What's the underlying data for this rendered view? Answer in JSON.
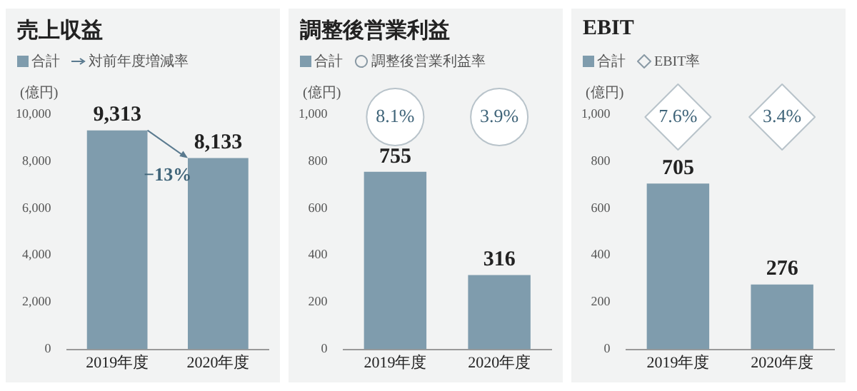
{
  "chart_data": [
    {
      "type": "bar",
      "title": "売上収益",
      "ylabel": "(億円)",
      "categories": [
        "2019年度",
        "2020年度"
      ],
      "series": [
        {
          "name": "合計",
          "color": "#7f9cad",
          "values": [
            9313,
            8133
          ],
          "value_labels": [
            "9,313",
            "8,133"
          ]
        }
      ],
      "ylim": [
        0,
        10000
      ],
      "yticks": [
        {
          "value": 0,
          "label": "0"
        },
        {
          "value": 2000,
          "label": "2,000"
        },
        {
          "value": 4000,
          "label": "4,000"
        },
        {
          "value": 6000,
          "label": "6,000"
        },
        {
          "value": 8000,
          "label": "8,000"
        },
        {
          "value": 10000,
          "label": "10,000"
        }
      ],
      "legend": "top left",
      "grid": false,
      "marker": "none",
      "annotations": [
        "対前年度増減率",
        "−13%"
      ]
    },
    {
      "type": "bar",
      "title": "調整後営業利益",
      "ylabel": "(億円)",
      "categories": [
        "2019年度",
        "2020年度"
      ],
      "series": [
        {
          "name": "合計",
          "color": "#7f9cad",
          "values": [
            755,
            316
          ]
        }
      ],
      "ylim": [
        0,
        1000
      ],
      "yticks": [
        0,
        200,
        400,
        600,
        800,
        {
          "value": 1000,
          "label": "1,000"
        }
      ],
      "data_labels": true,
      "legend": "top left",
      "grid": false,
      "marker": "circle",
      "annotations": [
        "調整後営業利益率",
        "8.1%",
        "3.9%"
      ]
    },
    {
      "type": "bar",
      "title": "EBIT",
      "ylabel": "(億円)",
      "categories": [
        "2019年度",
        "2020年度"
      ],
      "series": [
        {
          "name": "合計",
          "color": "#7f9cad",
          "values": [
            705,
            276
          ]
        }
      ],
      "ylim": [
        0,
        1000
      ],
      "yticks": [
        0,
        200,
        400,
        600,
        800,
        {
          "value": 1000,
          "label": "1,000"
        }
      ],
      "data_labels": true,
      "legend": "top left",
      "grid": false,
      "marker": "diamond",
      "annotations": [
        "EBIT率",
        "7.6%",
        "3.4%"
      ]
    }
  ]
}
